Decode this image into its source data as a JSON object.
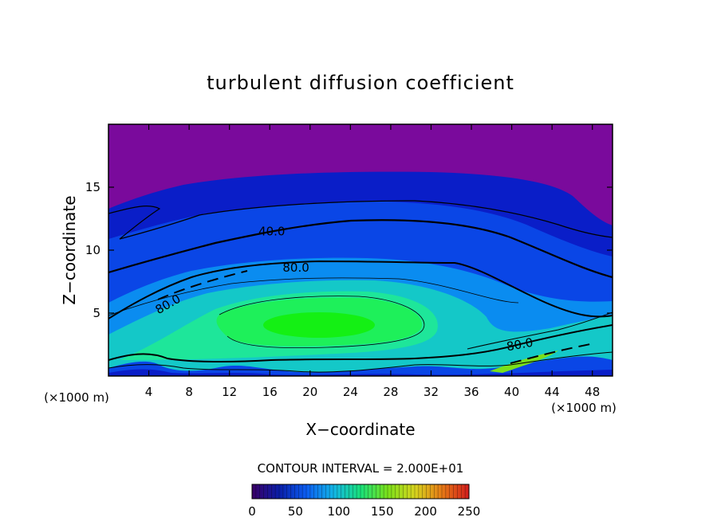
{
  "chart_data": {
    "type": "heatmap",
    "title": "turbulent diffusion coefficient",
    "xlabel": "X−coordinate",
    "ylabel": "Z−coordinate",
    "x_unit_left": "(×1000 m)",
    "x_unit_right": "(×1000 m)",
    "xlim": [
      0,
      50
    ],
    "ylim": [
      0,
      20
    ],
    "xticks": [
      4,
      8,
      12,
      16,
      20,
      24,
      28,
      32,
      36,
      40,
      44,
      48
    ],
    "yticks": [
      5,
      10,
      15
    ],
    "contour_interval_text": "CONTOUR INTERVAL = 2.000E+01",
    "contour_labels": [
      {
        "text": "40.0",
        "x": 16.2,
        "z": 11.5
      },
      {
        "text": "80.0",
        "x": 18.6,
        "z": 8.6
      },
      {
        "text": "80.0",
        "x": 5.9,
        "z": 5.7
      },
      {
        "text": "80.0",
        "x": 40.8,
        "z": 2.5
      }
    ],
    "colorbar": {
      "min": 0,
      "max": 250,
      "ticks": [
        0,
        50,
        100,
        150,
        200,
        250
      ],
      "colors": [
        "#3a0066",
        "#0a1ea8",
        "#0b5cf0",
        "#13b4e6",
        "#18e07a",
        "#7ae01a",
        "#d6d41e",
        "#e67a16",
        "#d21c1c"
      ]
    },
    "field_colors": {
      "top": "#7a0a9c",
      "deep_blue": "#0a1ec8",
      "blue": "#0a46e6",
      "mid_blue": "#0a8cf0",
      "cyan": "#14c8c8",
      "green_cyan": "#1ee69a",
      "green": "#1ef05a",
      "bright_green": "#14f014"
    }
  }
}
